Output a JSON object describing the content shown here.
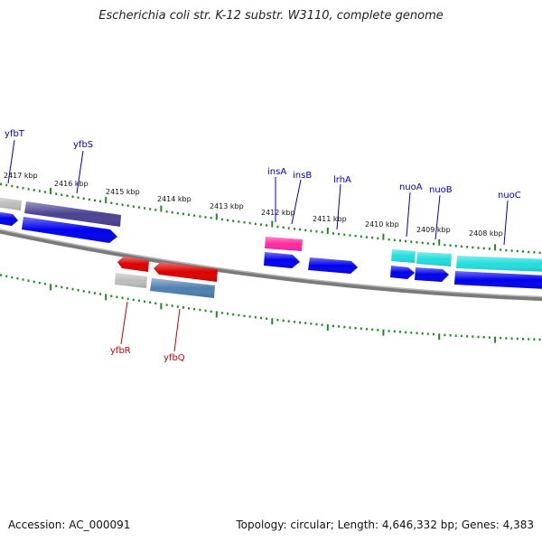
{
  "title": "Escherichia coli str. K-12 substr. W3110, complete genome",
  "footer": {
    "accession": "Accession: AC_000091",
    "summary": "Topology: circular; Length: 4,646,332 bp; Genes: 4,383"
  },
  "colors": {
    "backbone": "#808080",
    "tick": "#1f8a1f",
    "forward_gene": "#0000ee",
    "reverse_gene": "#dd0000",
    "pseudo_gene": "#bbbbbb",
    "insertion": "#ff2aa0",
    "nuo_operon": "#22dddd",
    "yfbS": "#4a4291",
    "yfbQ": "#4f7fb0"
  },
  "scale_labels": [
    "2417 kbp",
    "2416 kbp",
    "2415 kbp",
    "2414 kbp",
    "2413 kbp",
    "2412 kbp",
    "2411 kbp",
    "2410 kbp",
    "2409 kbp",
    "2408 kbp"
  ],
  "gene_labels": {
    "yfbT": "yfbT",
    "yfbS": "yfbS",
    "insA": "insA",
    "insB": "insB",
    "lrhA": "lrhA",
    "nuoA": "nuoA",
    "nuoB": "nuoB",
    "nuoC": "nuoC",
    "yfbR": "yfbR",
    "yfbQ": "yfbQ"
  }
}
